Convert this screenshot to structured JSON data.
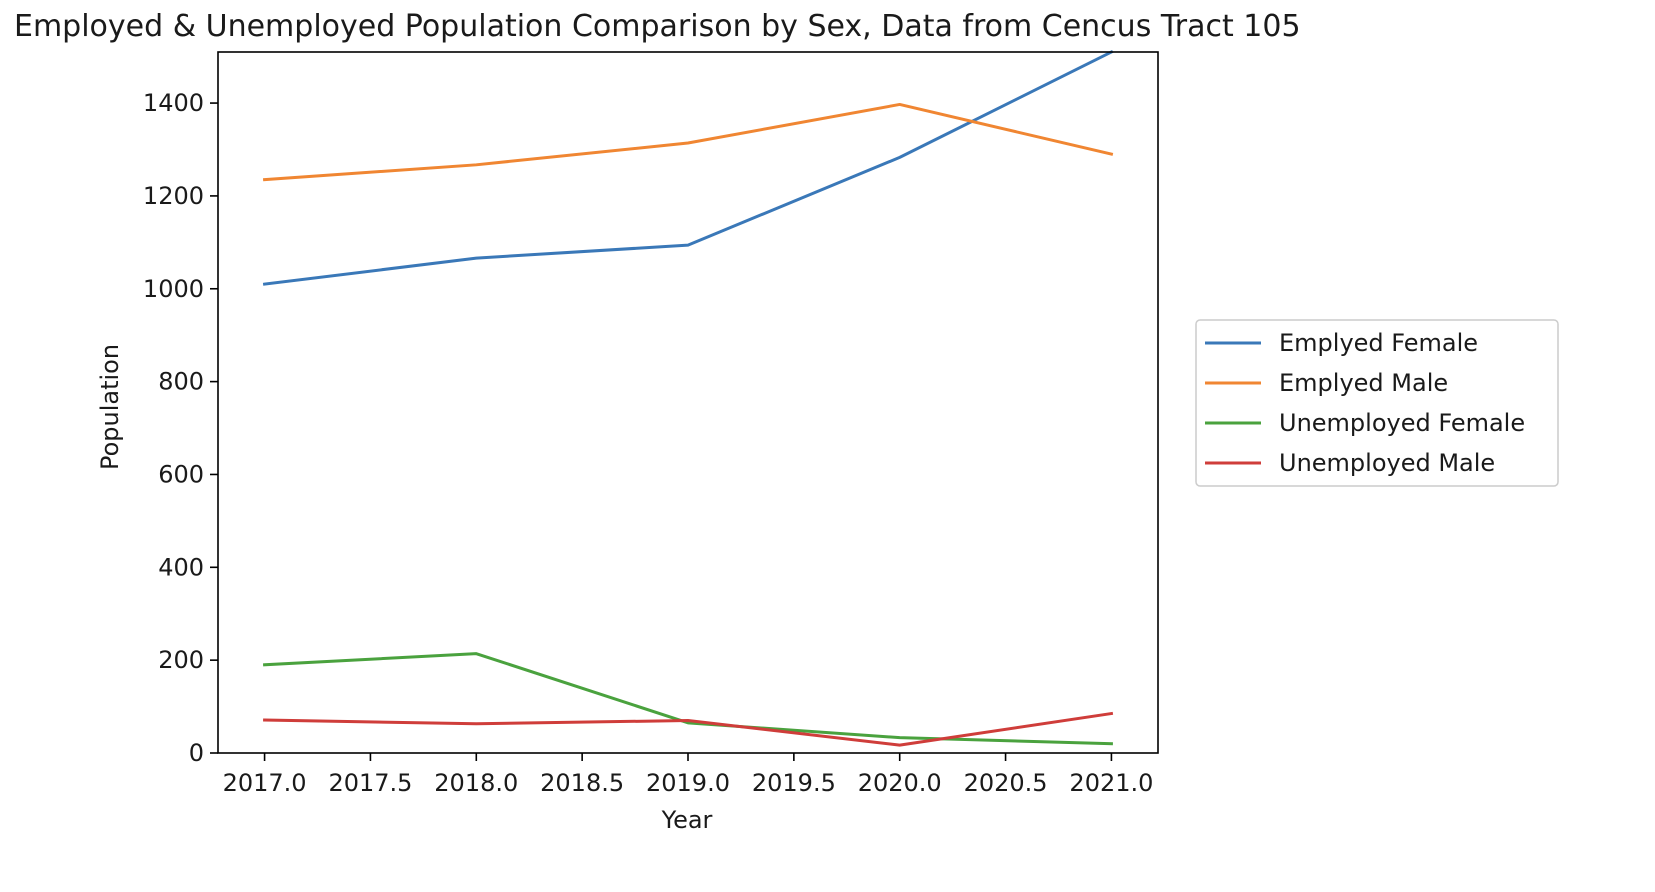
{
  "chart_data": {
    "type": "line",
    "title": "Employed & Unemployed Population Comparison by Sex, Data from Cencus Tract 105",
    "xlabel": "Year",
    "ylabel": "Population",
    "xlim": [
      2016.78,
      2021.22
    ],
    "ylim": [
      0,
      1510
    ],
    "xticks": [
      2017.0,
      2017.5,
      2018.0,
      2018.5,
      2019.0,
      2019.5,
      2020.0,
      2020.5,
      2021.0
    ],
    "xtick_labels": [
      "2017.0",
      "2017.5",
      "2018.0",
      "2018.5",
      "2019.0",
      "2019.5",
      "2020.0",
      "2020.5",
      "2021.0"
    ],
    "yticks": [
      0,
      200,
      400,
      600,
      800,
      1000,
      1200,
      1400
    ],
    "ytick_labels": [
      "0",
      "200",
      "400",
      "600",
      "800",
      "1000",
      "1200",
      "1400"
    ],
    "grid": false,
    "legend_position": "right, outside plot",
    "x": [
      2017,
      2018,
      2019,
      2020,
      2021
    ],
    "series": [
      {
        "name": "Emplyed Female",
        "color": "#3a78b8",
        "values": [
          1010,
          1066,
          1094,
          1283,
          1510
        ]
      },
      {
        "name": "Emplyed Male",
        "color": "#f08632",
        "values": [
          1235,
          1267,
          1314,
          1397,
          1290
        ]
      },
      {
        "name": "Unemployed Female",
        "color": "#4aa23e",
        "values": [
          190,
          214,
          65,
          33,
          20
        ]
      },
      {
        "name": "Unemployed Male",
        "color": "#cf3d3a",
        "values": [
          71,
          63,
          70,
          17,
          85
        ]
      }
    ]
  }
}
